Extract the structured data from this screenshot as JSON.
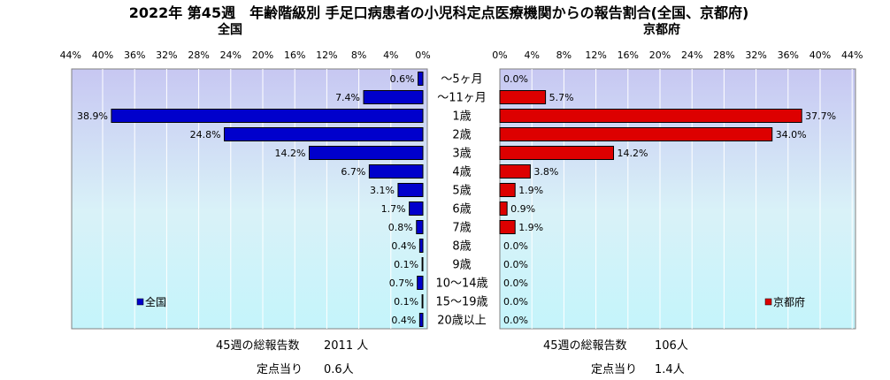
{
  "title": "2022年 第45週　年齢階級別 手足口病患者の小児科定点医療機関からの報告割合(全国、京都府)",
  "chart_data": [
    {
      "type": "bar",
      "orientation": "horizontal",
      "direction": "right-to-left",
      "panel_title": "全国",
      "legend": "全国",
      "legend_position": "bottom-left",
      "color": "#0000cc",
      "categories": [
        "～5ヶ月",
        "～11ヶ月",
        "1歳",
        "2歳",
        "3歳",
        "4歳",
        "5歳",
        "6歳",
        "7歳",
        "8歳",
        "9歳",
        "10～14歳",
        "15～19歳",
        "20歳以上"
      ],
      "values": [
        0.6,
        7.4,
        38.9,
        24.8,
        14.2,
        6.7,
        3.1,
        1.7,
        0.8,
        0.4,
        0.1,
        0.7,
        0.1,
        0.4
      ],
      "value_labels": [
        "0.6%",
        "7.4%",
        "38.9%",
        "24.8%",
        "14.2%",
        "6.7%",
        "3.1%",
        "1.7%",
        "0.8%",
        "0.4%",
        "0.1%",
        "0.7%",
        "0.1%",
        "0.4%"
      ],
      "xlim": [
        0,
        44
      ],
      "ticks": [
        44,
        40,
        36,
        32,
        28,
        24,
        20,
        16,
        12,
        8,
        4,
        0
      ],
      "tick_labels": [
        "44%",
        "40%",
        "36%",
        "32%",
        "28%",
        "24%",
        "20%",
        "16%",
        "12%",
        "8%",
        "4%",
        "0%"
      ],
      "grid": true
    },
    {
      "type": "bar",
      "orientation": "horizontal",
      "direction": "left-to-right",
      "panel_title": "京都府",
      "legend": "京都府",
      "legend_position": "bottom-right",
      "color": "#dd0000",
      "categories": [
        "～5ヶ月",
        "～11ヶ月",
        "1歳",
        "2歳",
        "3歳",
        "4歳",
        "5歳",
        "6歳",
        "7歳",
        "8歳",
        "9歳",
        "10～14歳",
        "15～19歳",
        "20歳以上"
      ],
      "values": [
        0.0,
        5.7,
        37.7,
        34.0,
        14.2,
        3.8,
        1.9,
        0.9,
        1.9,
        0.0,
        0.0,
        0.0,
        0.0,
        0.0
      ],
      "value_labels": [
        "0.0%",
        "5.7%",
        "37.7%",
        "34.0%",
        "14.2%",
        "3.8%",
        "1.9%",
        "0.9%",
        "1.9%",
        "0.0%",
        "0.0%",
        "0.0%",
        "0.0%",
        "0.0%"
      ],
      "xlim": [
        0,
        44
      ],
      "ticks": [
        0,
        4,
        8,
        12,
        16,
        20,
        24,
        28,
        32,
        36,
        40,
        44
      ],
      "tick_labels": [
        "0%",
        "4%",
        "8%",
        "12%",
        "16%",
        "20%",
        "24%",
        "28%",
        "32%",
        "36%",
        "40%",
        "44%"
      ],
      "grid": true
    }
  ],
  "footer": {
    "national": {
      "total_label": "45週の総報告数",
      "total_value": "2011 人",
      "per_label": "定点当り",
      "per_value": "0.6人"
    },
    "kyoto": {
      "total_label": "45週の総報告数",
      "total_value": "106人",
      "per_label": "定点当り",
      "per_value": "1.4人"
    }
  }
}
